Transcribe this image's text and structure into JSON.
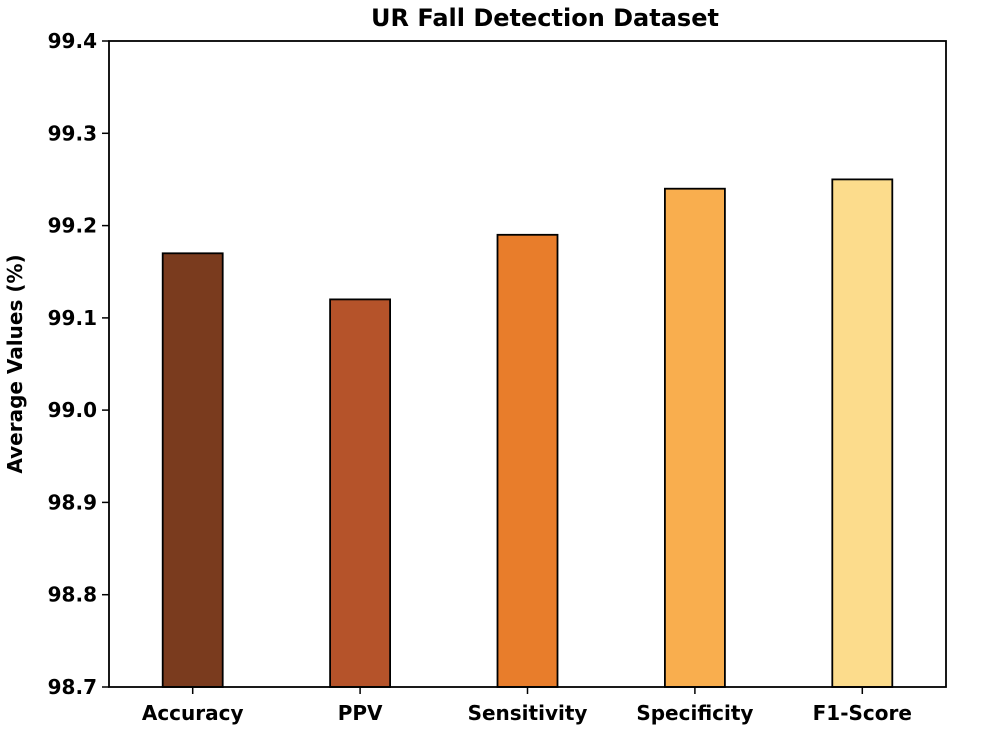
{
  "chart_data": {
    "type": "bar",
    "title": "UR Fall Detection Dataset",
    "xlabel": "",
    "ylabel": "Average Values (%)",
    "categories": [
      "Accuracy",
      "PPV",
      "Sensitivity",
      "Specificity",
      "F1-Score"
    ],
    "values": [
      99.17,
      99.12,
      99.19,
      99.24,
      99.25
    ],
    "colors": [
      "#7a3b1e",
      "#b5532a",
      "#e87d2b",
      "#f9ae4e",
      "#fcdc8c"
    ],
    "ylim": [
      98.7,
      99.4
    ],
    "yticks": [
      "98.7",
      "98.8",
      "98.9",
      "99.0",
      "99.1",
      "99.2",
      "99.3",
      "99.4"
    ],
    "grid": false,
    "legend": "none",
    "bar_edge_color": "#000000"
  }
}
